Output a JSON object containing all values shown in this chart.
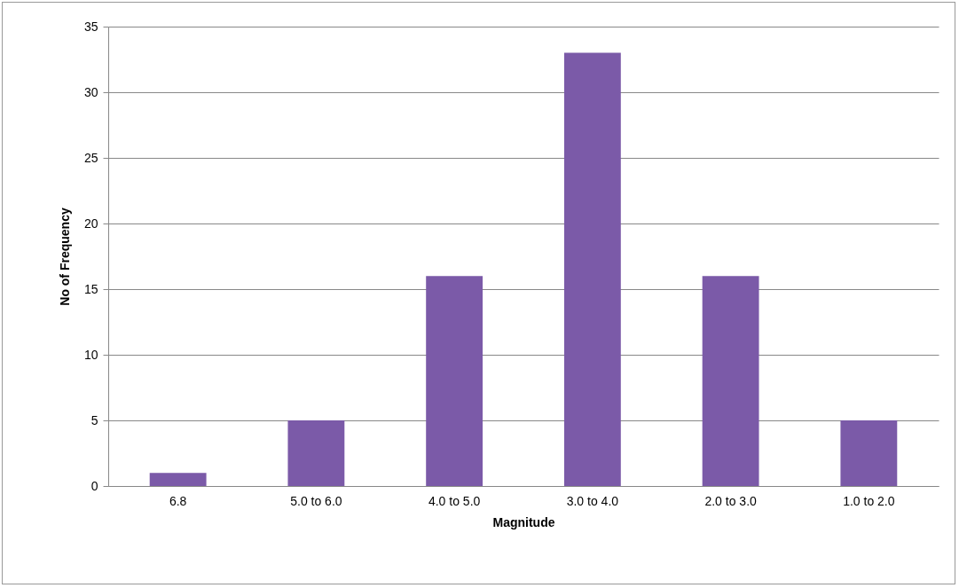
{
  "chart_data": {
    "type": "bar",
    "xlabel": "Magnitude",
    "ylabel": "No of Frequency",
    "categories": [
      "6.8",
      "5.0 to 6.0",
      "4.0 to 5.0",
      "3.0 to 4.0",
      "2.0 to 3.0",
      "1.0 to 2.0"
    ],
    "values": [
      1,
      5,
      16,
      33,
      16,
      5
    ],
    "color": "#7b5aa8",
    "ylim": [
      0,
      35
    ],
    "yticks": [
      0,
      5,
      10,
      15,
      20,
      25,
      30,
      35
    ],
    "grid": "y"
  }
}
